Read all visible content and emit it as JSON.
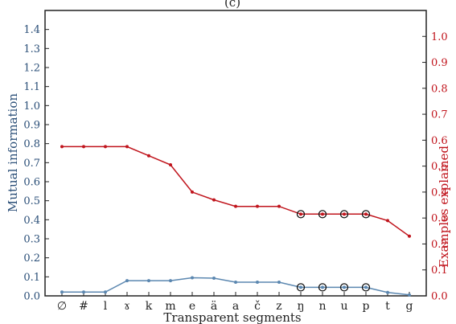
{
  "chart_data": {
    "type": "line",
    "title": "(c)",
    "xlabel": "Transparent segments",
    "categories": [
      "∅",
      "#",
      "l",
      "ɤ",
      "k",
      "m",
      "e",
      "ä",
      "a",
      "č",
      "z",
      "ŋ",
      "n",
      "u",
      "p",
      "t",
      "g"
    ],
    "left_axis": {
      "label": "Mutual information",
      "ylim": [
        0,
        1.5
      ],
      "ticks": [
        "0.0",
        "0.1",
        "0.2",
        "0.3",
        "0.4",
        "0.5",
        "0.6",
        "0.7",
        "0.8",
        "0.9",
        "1.0",
        "1.1",
        "1.2",
        "1.3",
        "1.4"
      ],
      "color": "#5b87b0"
    },
    "right_axis": {
      "label": "Examples explained",
      "ylim": [
        0,
        1.1
      ],
      "ticks": [
        "0.0",
        "0.1",
        "0.2",
        "0.3",
        "0.4",
        "0.5",
        "0.6",
        "0.7",
        "0.8",
        "0.9",
        "1.0"
      ],
      "color": "#c0141c"
    },
    "series": [
      {
        "axis": "left",
        "color": "#5b87b0",
        "values": [
          0.02,
          0.02,
          0.02,
          0.08,
          0.08,
          0.08,
          0.095,
          0.093,
          0.072,
          0.072,
          0.072,
          0.045,
          0.045,
          0.045,
          0.045,
          0.018,
          0.005
        ],
        "circled": [
          11,
          12,
          13,
          14
        ]
      },
      {
        "axis": "right",
        "color": "#c0141c",
        "values": [
          0.575,
          0.575,
          0.575,
          0.575,
          0.54,
          0.505,
          0.4,
          0.37,
          0.345,
          0.345,
          0.345,
          0.315,
          0.315,
          0.315,
          0.315,
          0.29,
          0.23
        ],
        "circled": [
          11,
          12,
          13,
          14
        ]
      }
    ]
  }
}
